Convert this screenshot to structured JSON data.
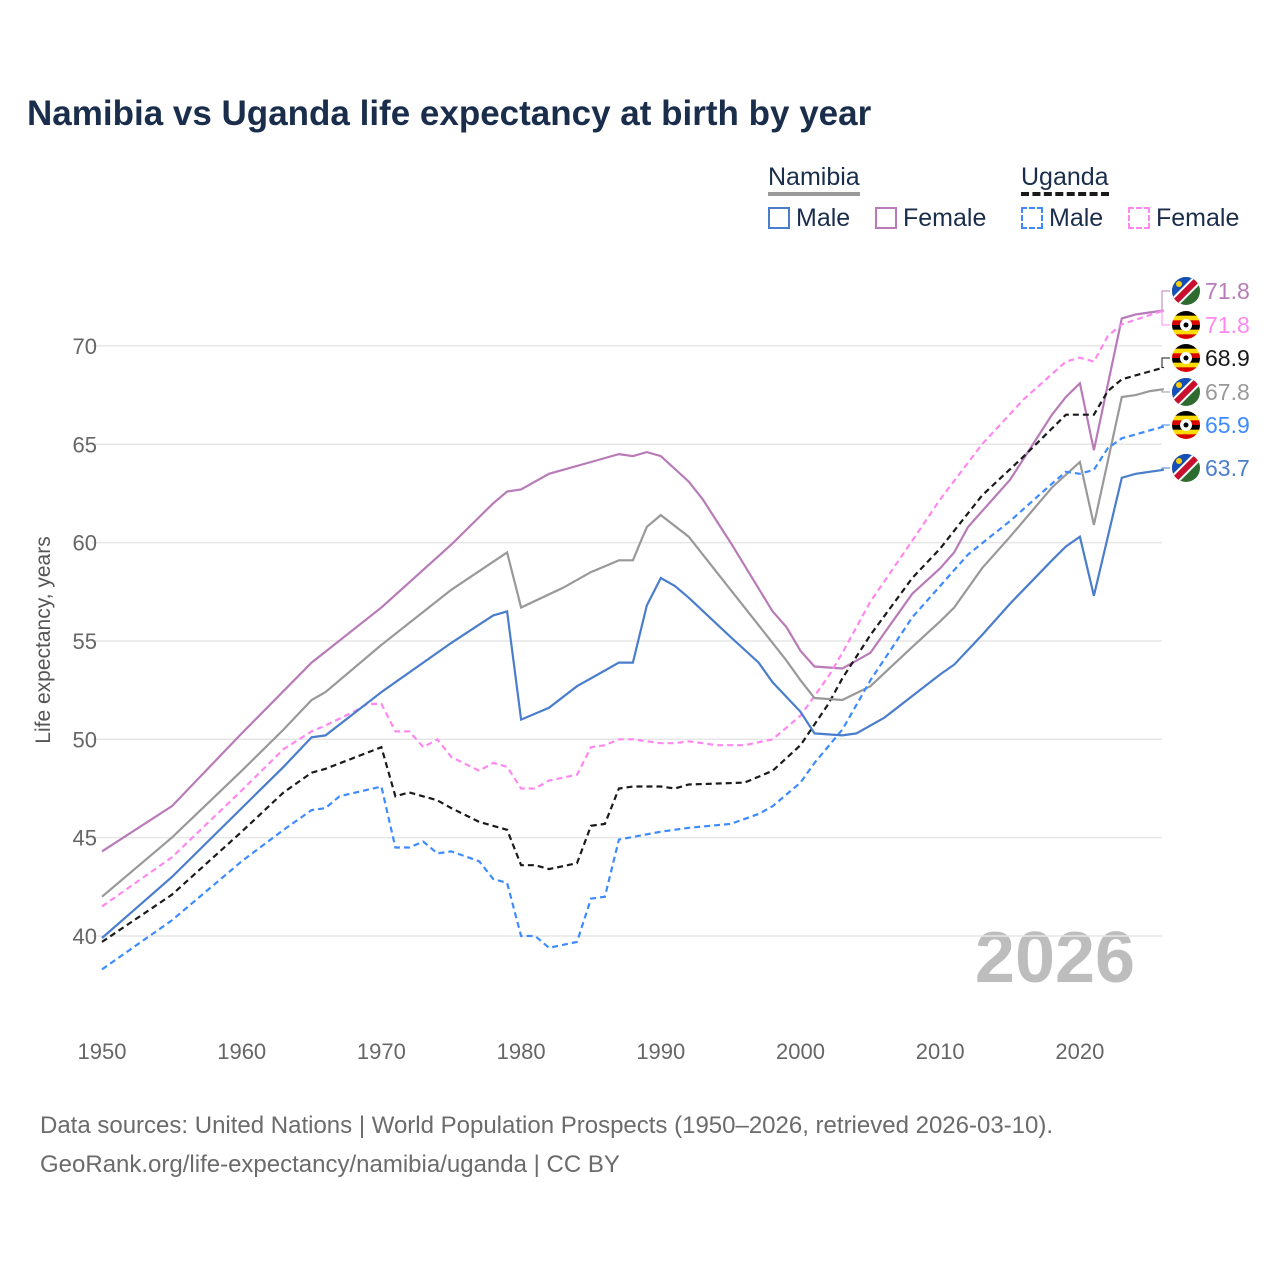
{
  "chart_data": {
    "type": "line",
    "title": "Namibia vs Uganda life expectancy at birth by year",
    "ylabel": "Life expectancy, years",
    "xlabel": "",
    "xlim": [
      1950,
      2026
    ],
    "ylim": [
      37,
      73
    ],
    "yticks": [
      40,
      45,
      50,
      55,
      60,
      65,
      70
    ],
    "xticks": [
      1950,
      1960,
      1970,
      1980,
      1990,
      2000,
      2010,
      2020
    ],
    "grid": true,
    "year_watermark": "2026",
    "legend": {
      "groups": [
        {
          "country": "Namibia",
          "items": [
            "Male",
            "Female"
          ]
        },
        {
          "country": "Uganda",
          "items": [
            "Male",
            "Female"
          ]
        }
      ],
      "placement": "top-right"
    },
    "series": [
      {
        "name": "Namibia Female",
        "country": "Namibia",
        "color": "#b87bb8",
        "dash": false,
        "end_label": "71.8",
        "points": [
          [
            1950,
            44.3
          ],
          [
            1955,
            46.6
          ],
          [
            1960,
            50.3
          ],
          [
            1965,
            53.9
          ],
          [
            1970,
            56.7
          ],
          [
            1975,
            59.9
          ],
          [
            1978,
            62.0
          ],
          [
            1979,
            62.6
          ],
          [
            1980,
            62.7
          ],
          [
            1982,
            63.5
          ],
          [
            1985,
            64.1
          ],
          [
            1987,
            64.5
          ],
          [
            1988,
            64.4
          ],
          [
            1989,
            64.6
          ],
          [
            1990,
            64.4
          ],
          [
            1992,
            63.1
          ],
          [
            1993,
            62.2
          ],
          [
            1995,
            60.0
          ],
          [
            1998,
            56.5
          ],
          [
            1999,
            55.7
          ],
          [
            2000,
            54.5
          ],
          [
            2001,
            53.7
          ],
          [
            2003,
            53.6
          ],
          [
            2005,
            54.4
          ],
          [
            2008,
            57.4
          ],
          [
            2010,
            58.7
          ],
          [
            2011,
            59.5
          ],
          [
            2012,
            60.8
          ],
          [
            2015,
            63.2
          ],
          [
            2018,
            66.5
          ],
          [
            2019,
            67.4
          ],
          [
            2020,
            68.1
          ],
          [
            2021,
            64.7
          ],
          [
            2023,
            71.4
          ],
          [
            2024,
            71.6
          ],
          [
            2026,
            71.8
          ]
        ]
      },
      {
        "name": "Uganda Female",
        "country": "Uganda",
        "color": "#ff88f0",
        "dash": true,
        "end_label": "71.8",
        "points": [
          [
            1950,
            41.5
          ],
          [
            1955,
            44.0
          ],
          [
            1960,
            47.4
          ],
          [
            1963,
            49.5
          ],
          [
            1965,
            50.4
          ],
          [
            1966,
            50.7
          ],
          [
            1968,
            51.4
          ],
          [
            1969,
            51.8
          ],
          [
            1970,
            51.8
          ],
          [
            1971,
            50.4
          ],
          [
            1972,
            50.4
          ],
          [
            1973,
            49.6
          ],
          [
            1974,
            50.0
          ],
          [
            1975,
            49.1
          ],
          [
            1977,
            48.4
          ],
          [
            1978,
            48.8
          ],
          [
            1979,
            48.6
          ],
          [
            1980,
            47.5
          ],
          [
            1981,
            47.5
          ],
          [
            1982,
            47.9
          ],
          [
            1984,
            48.2
          ],
          [
            1985,
            49.6
          ],
          [
            1986,
            49.7
          ],
          [
            1987,
            50.0
          ],
          [
            1988,
            50.0
          ],
          [
            1990,
            49.8
          ],
          [
            1991,
            49.8
          ],
          [
            1992,
            49.9
          ],
          [
            1994,
            49.7
          ],
          [
            1996,
            49.7
          ],
          [
            1998,
            50.0
          ],
          [
            2000,
            51.2
          ],
          [
            2002,
            53.2
          ],
          [
            2003,
            54.4
          ],
          [
            2005,
            57.0
          ],
          [
            2008,
            60.1
          ],
          [
            2010,
            62.2
          ],
          [
            2013,
            65.0
          ],
          [
            2016,
            67.3
          ],
          [
            2019,
            69.2
          ],
          [
            2020,
            69.4
          ],
          [
            2021,
            69.2
          ],
          [
            2022,
            70.5
          ],
          [
            2023,
            71.1
          ],
          [
            2026,
            71.8
          ]
        ]
      },
      {
        "name": "Uganda",
        "country": "Uganda",
        "color": "#1a1a1a",
        "dash": true,
        "end_label": "68.9",
        "points": [
          [
            1950,
            39.7
          ],
          [
            1955,
            42.1
          ],
          [
            1960,
            45.3
          ],
          [
            1963,
            47.3
          ],
          [
            1965,
            48.3
          ],
          [
            1966,
            48.5
          ],
          [
            1970,
            49.6
          ],
          [
            1971,
            47.1
          ],
          [
            1972,
            47.3
          ],
          [
            1974,
            46.9
          ],
          [
            1975,
            46.5
          ],
          [
            1977,
            45.8
          ],
          [
            1979,
            45.4
          ],
          [
            1980,
            43.6
          ],
          [
            1981,
            43.6
          ],
          [
            1982,
            43.4
          ],
          [
            1984,
            43.7
          ],
          [
            1985,
            45.6
          ],
          [
            1986,
            45.7
          ],
          [
            1987,
            47.5
          ],
          [
            1988,
            47.6
          ],
          [
            1990,
            47.6
          ],
          [
            1991,
            47.5
          ],
          [
            1992,
            47.7
          ],
          [
            1996,
            47.8
          ],
          [
            1998,
            48.4
          ],
          [
            2000,
            49.7
          ],
          [
            2002,
            51.8
          ],
          [
            2003,
            53.1
          ],
          [
            2005,
            55.3
          ],
          [
            2008,
            58.2
          ],
          [
            2010,
            59.7
          ],
          [
            2013,
            62.4
          ],
          [
            2016,
            64.4
          ],
          [
            2019,
            66.5
          ],
          [
            2021,
            66.5
          ],
          [
            2022,
            67.7
          ],
          [
            2023,
            68.3
          ],
          [
            2026,
            68.9
          ]
        ]
      },
      {
        "name": "Namibia",
        "country": "Namibia",
        "color": "#999999",
        "dash": false,
        "end_label": "67.8",
        "points": [
          [
            1950,
            42.0
          ],
          [
            1955,
            45.0
          ],
          [
            1960,
            48.4
          ],
          [
            1963,
            50.5
          ],
          [
            1965,
            52.0
          ],
          [
            1966,
            52.4
          ],
          [
            1970,
            54.8
          ],
          [
            1975,
            57.6
          ],
          [
            1979,
            59.5
          ],
          [
            1980,
            56.7
          ],
          [
            1983,
            57.7
          ],
          [
            1985,
            58.5
          ],
          [
            1987,
            59.1
          ],
          [
            1988,
            59.1
          ],
          [
            1989,
            60.8
          ],
          [
            1990,
            61.4
          ],
          [
            1992,
            60.3
          ],
          [
            1995,
            57.6
          ],
          [
            1997,
            55.8
          ],
          [
            1999,
            54.0
          ],
          [
            2000,
            53.0
          ],
          [
            2001,
            52.1
          ],
          [
            2003,
            52.0
          ],
          [
            2005,
            52.7
          ],
          [
            2008,
            54.7
          ],
          [
            2010,
            56.0
          ],
          [
            2011,
            56.7
          ],
          [
            2013,
            58.7
          ],
          [
            2015,
            60.3
          ],
          [
            2018,
            62.8
          ],
          [
            2020,
            64.1
          ],
          [
            2021,
            60.9
          ],
          [
            2023,
            67.4
          ],
          [
            2024,
            67.5
          ],
          [
            2025,
            67.7
          ],
          [
            2026,
            67.8
          ]
        ]
      },
      {
        "name": "Uganda Male",
        "country": "Uganda",
        "color": "#3d8bff",
        "dash": true,
        "end_label": "65.9",
        "points": [
          [
            1950,
            38.3
          ],
          [
            1955,
            40.8
          ],
          [
            1960,
            43.8
          ],
          [
            1963,
            45.4
          ],
          [
            1965,
            46.4
          ],
          [
            1966,
            46.5
          ],
          [
            1967,
            47.1
          ],
          [
            1970,
            47.6
          ],
          [
            1971,
            44.5
          ],
          [
            1972,
            44.5
          ],
          [
            1973,
            44.8
          ],
          [
            1974,
            44.2
          ],
          [
            1975,
            44.3
          ],
          [
            1977,
            43.8
          ],
          [
            1978,
            42.9
          ],
          [
            1979,
            42.7
          ],
          [
            1980,
            40.0
          ],
          [
            1981,
            40.0
          ],
          [
            1982,
            39.4
          ],
          [
            1984,
            39.7
          ],
          [
            1985,
            41.9
          ],
          [
            1986,
            42.0
          ],
          [
            1987,
            44.9
          ],
          [
            1990,
            45.3
          ],
          [
            1992,
            45.5
          ],
          [
            1995,
            45.7
          ],
          [
            1997,
            46.2
          ],
          [
            1998,
            46.6
          ],
          [
            2000,
            47.8
          ],
          [
            2001,
            48.8
          ],
          [
            2003,
            50.5
          ],
          [
            2005,
            53.0
          ],
          [
            2008,
            56.2
          ],
          [
            2010,
            57.8
          ],
          [
            2012,
            59.4
          ],
          [
            2015,
            61.1
          ],
          [
            2018,
            63.0
          ],
          [
            2019,
            63.6
          ],
          [
            2020,
            63.5
          ],
          [
            2021,
            63.7
          ],
          [
            2022,
            64.8
          ],
          [
            2023,
            65.3
          ],
          [
            2026,
            65.9
          ]
        ]
      },
      {
        "name": "Namibia Male",
        "country": "Namibia",
        "color": "#4a7dcc",
        "dash": false,
        "end_label": "63.7",
        "points": [
          [
            1950,
            39.9
          ],
          [
            1955,
            43.0
          ],
          [
            1960,
            46.5
          ],
          [
            1963,
            48.6
          ],
          [
            1965,
            50.1
          ],
          [
            1966,
            50.2
          ],
          [
            1970,
            52.4
          ],
          [
            1975,
            54.9
          ],
          [
            1978,
            56.3
          ],
          [
            1979,
            56.5
          ],
          [
            1980,
            51.0
          ],
          [
            1982,
            51.6
          ],
          [
            1984,
            52.7
          ],
          [
            1986,
            53.5
          ],
          [
            1987,
            53.9
          ],
          [
            1988,
            53.9
          ],
          [
            1989,
            56.8
          ],
          [
            1990,
            58.2
          ],
          [
            1991,
            57.8
          ],
          [
            1992,
            57.2
          ],
          [
            1995,
            55.2
          ],
          [
            1997,
            53.9
          ],
          [
            1998,
            52.9
          ],
          [
            2000,
            51.4
          ],
          [
            2001,
            50.3
          ],
          [
            2003,
            50.2
          ],
          [
            2004,
            50.3
          ],
          [
            2006,
            51.1
          ],
          [
            2008,
            52.2
          ],
          [
            2010,
            53.3
          ],
          [
            2011,
            53.8
          ],
          [
            2013,
            55.3
          ],
          [
            2015,
            56.9
          ],
          [
            2018,
            59.1
          ],
          [
            2019,
            59.8
          ],
          [
            2020,
            60.3
          ],
          [
            2021,
            57.3
          ],
          [
            2023,
            63.3
          ],
          [
            2024,
            63.5
          ],
          [
            2026,
            63.7
          ]
        ]
      }
    ]
  },
  "legend": {
    "namibia": "Namibia",
    "uganda": "Uganda",
    "male": "Male",
    "female": "Female"
  },
  "footer": {
    "line1": "Data sources: United Nations | World Population Prospects (1950–2026, retrieved 2026-03-10).",
    "line2": "GeoRank.org/life-expectancy/namibia/uganda | CC BY"
  }
}
